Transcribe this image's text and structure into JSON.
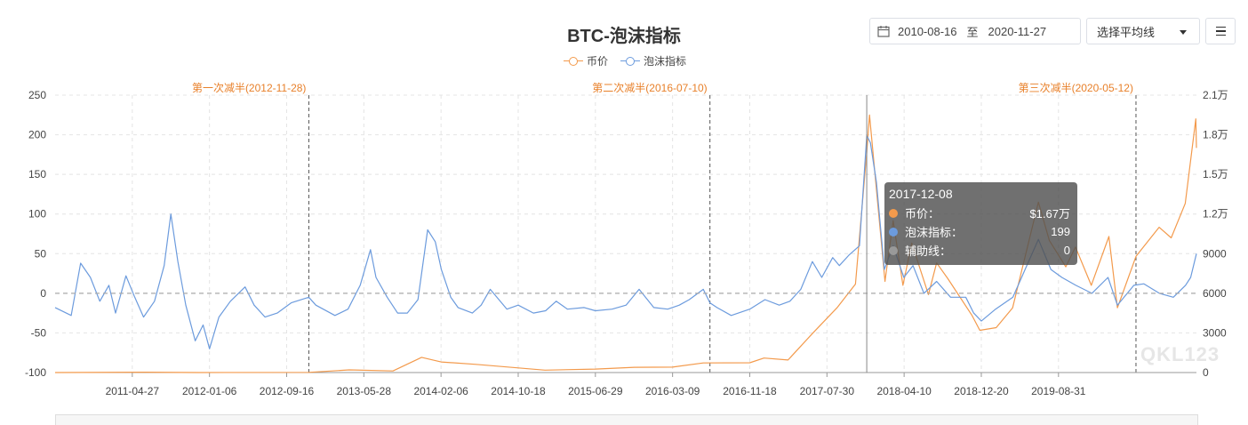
{
  "title": "BTC-泡沫指标",
  "controls": {
    "date_start": "2010-08-16",
    "date_sep": "至",
    "date_end": "2020-11-27",
    "select_label": "选择平均线"
  },
  "colors": {
    "price": "#f39a4c",
    "bubble": "#6c9bdd",
    "marker": "#e8802a"
  },
  "tooltip": {
    "date": "2017-12-08",
    "rows": [
      {
        "name": "币价：",
        "value": "$1.67万",
        "color": "#f39a4c"
      },
      {
        "name": "泡沫指标：",
        "value": "199",
        "color": "#6c9bdd"
      },
      {
        "name": "辅助线：",
        "value": "0",
        "color": "#999999"
      }
    ]
  },
  "logo": "QKL123",
  "chart_data": {
    "type": "line",
    "x_range": [
      "2010-08-16",
      "2020-11-27"
    ],
    "x_tick_labels": [
      "2011-04-27",
      "2012-01-06",
      "2012-09-16",
      "2013-05-28",
      "2014-02-06",
      "2014-10-18",
      "2015-06-29",
      "2016-03-09",
      "2016-11-18",
      "2017-07-30",
      "2018-04-10",
      "2018-12-20",
      "2019-08-31"
    ],
    "y_left": {
      "min": -100,
      "max": 250,
      "ticks": [
        -100,
        -50,
        0,
        50,
        100,
        150,
        200,
        250
      ],
      "tick_labels": [
        "-100",
        "-50",
        "0",
        "50",
        "100",
        "150",
        "200",
        "250"
      ]
    },
    "y_right": {
      "min": 0,
      "max": 21000,
      "ticks": [
        0,
        3000,
        6000,
        9000,
        12000,
        15000,
        18000,
        21000
      ],
      "tick_labels": [
        "0",
        "3000",
        "6000",
        "9000",
        "1.2万",
        "1.5万",
        "1.8万",
        "2.1万"
      ]
    },
    "legend_position": "top-center",
    "grid": true,
    "halving_markers": [
      {
        "date": "2012-11-28",
        "label": "第一次减半(2012-11-28)"
      },
      {
        "date": "2016-07-10",
        "label": "第二次减半(2016-07-10)"
      },
      {
        "date": "2020-05-12",
        "label": "第三次减半(2020-05-12)"
      }
    ],
    "series": [
      {
        "name": "币价",
        "axis": "right",
        "color": "#f39a4c",
        "points": [
          [
            "2010-08-16",
            0.07
          ],
          [
            "2011-06-08",
            25
          ],
          [
            "2011-12-01",
            3
          ],
          [
            "2012-11-28",
            12
          ],
          [
            "2013-04-10",
            200
          ],
          [
            "2013-09-01",
            120
          ],
          [
            "2013-12-04",
            1150
          ],
          [
            "2014-02-06",
            800
          ],
          [
            "2014-06-01",
            620
          ],
          [
            "2015-01-14",
            180
          ],
          [
            "2015-06-29",
            260
          ],
          [
            "2015-11-04",
            400
          ],
          [
            "2016-03-09",
            410
          ],
          [
            "2016-06-18",
            730
          ],
          [
            "2016-11-18",
            740
          ],
          [
            "2017-01-04",
            1100
          ],
          [
            "2017-03-24",
            950
          ],
          [
            "2017-06-12",
            2950
          ],
          [
            "2017-09-01",
            4900
          ],
          [
            "2017-11-01",
            6700
          ],
          [
            "2017-12-08",
            16700
          ],
          [
            "2017-12-17",
            19500
          ],
          [
            "2018-02-06",
            6900
          ],
          [
            "2018-03-05",
            11500
          ],
          [
            "2018-04-06",
            6600
          ],
          [
            "2018-05-05",
            9800
          ],
          [
            "2018-06-29",
            5900
          ],
          [
            "2018-07-26",
            8300
          ],
          [
            "2018-09-01",
            7100
          ],
          [
            "2018-11-20",
            4300
          ],
          [
            "2018-12-15",
            3200
          ],
          [
            "2019-02-07",
            3400
          ],
          [
            "2019-04-02",
            4900
          ],
          [
            "2019-06-26",
            12900
          ],
          [
            "2019-08-01",
            10000
          ],
          [
            "2019-09-24",
            8000
          ],
          [
            "2019-10-26",
            9500
          ],
          [
            "2019-12-17",
            6600
          ],
          [
            "2020-02-13",
            10300
          ],
          [
            "2020-03-12",
            4900
          ],
          [
            "2020-05-12",
            8800
          ],
          [
            "2020-07-27",
            11000
          ],
          [
            "2020-09-05",
            10200
          ],
          [
            "2020-10-21",
            12800
          ],
          [
            "2020-11-25",
            19200
          ],
          [
            "2020-11-27",
            17000
          ]
        ]
      },
      {
        "name": "泡沫指标",
        "axis": "left",
        "color": "#6c9bdd",
        "points": [
          [
            "2010-08-16",
            -18
          ],
          [
            "2010-10-08",
            -28
          ],
          [
            "2010-11-08",
            38
          ],
          [
            "2010-12-10",
            20
          ],
          [
            "2011-01-10",
            -10
          ],
          [
            "2011-02-09",
            10
          ],
          [
            "2011-03-03",
            -25
          ],
          [
            "2011-04-06",
            22
          ],
          [
            "2011-05-05",
            -5
          ],
          [
            "2011-06-03",
            -30
          ],
          [
            "2011-07-09",
            -10
          ],
          [
            "2011-08-10",
            35
          ],
          [
            "2011-09-01",
            100
          ],
          [
            "2011-09-24",
            40
          ],
          [
            "2011-10-20",
            -15
          ],
          [
            "2011-11-20",
            -60
          ],
          [
            "2011-12-16",
            -40
          ],
          [
            "2012-01-06",
            -70
          ],
          [
            "2012-02-06",
            -30
          ],
          [
            "2012-03-15",
            -10
          ],
          [
            "2012-05-02",
            8
          ],
          [
            "2012-06-01",
            -15
          ],
          [
            "2012-07-07",
            -30
          ],
          [
            "2012-08-16",
            -25
          ],
          [
            "2012-10-01",
            -12
          ],
          [
            "2012-11-28",
            -5
          ],
          [
            "2012-12-21",
            -15
          ],
          [
            "2013-02-22",
            -28
          ],
          [
            "2013-04-06",
            -20
          ],
          [
            "2013-05-16",
            10
          ],
          [
            "2013-06-19",
            55
          ],
          [
            "2013-07-07",
            20
          ],
          [
            "2013-08-13",
            -5
          ],
          [
            "2013-09-16",
            -25
          ],
          [
            "2013-10-18",
            -25
          ],
          [
            "2013-11-22",
            -8
          ],
          [
            "2013-12-24",
            80
          ],
          [
            "2014-01-18",
            65
          ],
          [
            "2014-02-07",
            30
          ],
          [
            "2014-03-10",
            -5
          ],
          [
            "2014-04-03",
            -18
          ],
          [
            "2014-05-20",
            -25
          ],
          [
            "2014-06-18",
            -15
          ],
          [
            "2014-07-18",
            5
          ],
          [
            "2014-09-11",
            -20
          ],
          [
            "2014-10-18",
            -15
          ],
          [
            "2014-12-07",
            -25
          ],
          [
            "2015-01-16",
            -22
          ],
          [
            "2015-02-20",
            -10
          ],
          [
            "2015-03-29",
            -20
          ],
          [
            "2015-05-23",
            -18
          ],
          [
            "2015-06-29",
            -22
          ],
          [
            "2015-08-23",
            -20
          ],
          [
            "2015-10-08",
            -15
          ],
          [
            "2015-11-20",
            5
          ],
          [
            "2016-01-07",
            -18
          ],
          [
            "2016-02-22",
            -20
          ],
          [
            "2016-03-31",
            -15
          ],
          [
            "2016-05-03",
            -8
          ],
          [
            "2016-06-18",
            5
          ],
          [
            "2016-07-10",
            -12
          ],
          [
            "2016-08-02",
            -18
          ],
          [
            "2016-09-18",
            -28
          ],
          [
            "2016-11-18",
            -20
          ],
          [
            "2017-01-07",
            -8
          ],
          [
            "2017-02-23",
            -15
          ],
          [
            "2017-03-30",
            -10
          ],
          [
            "2017-05-05",
            5
          ],
          [
            "2017-06-12",
            40
          ],
          [
            "2017-07-13",
            20
          ],
          [
            "2017-08-18",
            45
          ],
          [
            "2017-09-09",
            35
          ],
          [
            "2017-10-10",
            48
          ],
          [
            "2017-11-14",
            60
          ],
          [
            "2017-12-08",
            199
          ],
          [
            "2017-12-20",
            190
          ],
          [
            "2018-01-09",
            140
          ],
          [
            "2018-02-04",
            30
          ],
          [
            "2018-03-05",
            60
          ],
          [
            "2018-04-09",
            20
          ],
          [
            "2018-05-09",
            35
          ],
          [
            "2018-06-14",
            0
          ],
          [
            "2018-07-26",
            15
          ],
          [
            "2018-09-10",
            -5
          ],
          [
            "2018-10-30",
            -5
          ],
          [
            "2018-11-25",
            -25
          ],
          [
            "2018-12-20",
            -35
          ],
          [
            "2019-02-05",
            -20
          ],
          [
            "2019-04-03",
            -5
          ],
          [
            "2019-05-13",
            30
          ],
          [
            "2019-06-26",
            68
          ],
          [
            "2019-08-06",
            30
          ],
          [
            "2019-09-11",
            20
          ],
          [
            "2019-10-27",
            10
          ],
          [
            "2019-12-19",
            0
          ],
          [
            "2020-02-10",
            20
          ],
          [
            "2020-03-12",
            -15
          ],
          [
            "2020-05-05",
            10
          ],
          [
            "2020-06-07",
            12
          ],
          [
            "2020-07-28",
            0
          ],
          [
            "2020-09-12",
            -5
          ],
          [
            "2020-10-22",
            10
          ],
          [
            "2020-11-08",
            20
          ],
          [
            "2020-11-27",
            50
          ]
        ]
      },
      {
        "name": "辅助线",
        "axis": "left",
        "color": "#999999",
        "points": [
          [
            "2010-08-16",
            0
          ],
          [
            "2020-11-27",
            0
          ]
        ]
      }
    ]
  }
}
